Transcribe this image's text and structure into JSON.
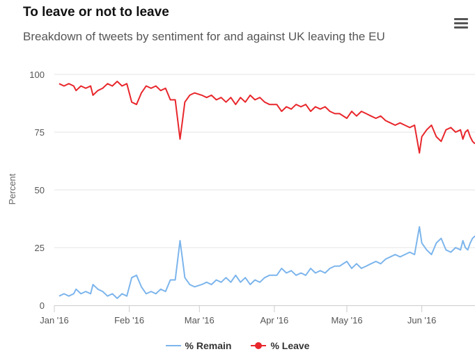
{
  "chart_data": {
    "type": "line",
    "title": "To leave or not to leave",
    "subtitle": "Breakdown of tweets by sentiment for and against UK leaving the EU",
    "ylabel": "Percent",
    "xlabel": "",
    "ylim": [
      0,
      100
    ],
    "yticks": [
      0,
      25,
      50,
      75,
      100
    ],
    "xlim": [
      "2016-01-01",
      "2016-06-23"
    ],
    "xticks": [
      {
        "date": "2016-01-01",
        "label": "Jan '16"
      },
      {
        "date": "2016-02-01",
        "label": "Feb '16"
      },
      {
        "date": "2016-03-01",
        "label": "Mar '16"
      },
      {
        "date": "2016-04-01",
        "label": "Apr '16"
      },
      {
        "date": "2016-05-01",
        "label": "May '16"
      },
      {
        "date": "2016-06-01",
        "label": "Jun '16"
      }
    ],
    "grid": true,
    "legend_position": "bottom",
    "series": [
      {
        "name": "% Remain",
        "color": "#7cb5ec",
        "marker": "line",
        "points": [
          [
            "2016-01-03",
            4
          ],
          [
            "2016-01-05",
            5
          ],
          [
            "2016-01-07",
            4
          ],
          [
            "2016-01-09",
            5
          ],
          [
            "2016-01-10",
            7
          ],
          [
            "2016-01-12",
            5
          ],
          [
            "2016-01-14",
            6
          ],
          [
            "2016-01-16",
            5
          ],
          [
            "2016-01-17",
            9
          ],
          [
            "2016-01-19",
            7
          ],
          [
            "2016-01-21",
            6
          ],
          [
            "2016-01-23",
            4
          ],
          [
            "2016-01-25",
            5
          ],
          [
            "2016-01-27",
            3
          ],
          [
            "2016-01-29",
            5
          ],
          [
            "2016-01-31",
            4
          ],
          [
            "2016-02-02",
            12
          ],
          [
            "2016-02-04",
            13
          ],
          [
            "2016-02-06",
            8
          ],
          [
            "2016-02-08",
            5
          ],
          [
            "2016-02-10",
            6
          ],
          [
            "2016-02-12",
            5
          ],
          [
            "2016-02-14",
            7
          ],
          [
            "2016-02-16",
            6
          ],
          [
            "2016-02-18",
            11
          ],
          [
            "2016-02-20",
            11
          ],
          [
            "2016-02-22",
            28
          ],
          [
            "2016-02-23",
            20
          ],
          [
            "2016-02-24",
            12
          ],
          [
            "2016-02-26",
            9
          ],
          [
            "2016-02-28",
            8
          ],
          [
            "2016-03-02",
            9
          ],
          [
            "2016-03-04",
            10
          ],
          [
            "2016-03-06",
            9
          ],
          [
            "2016-03-08",
            11
          ],
          [
            "2016-03-10",
            10
          ],
          [
            "2016-03-12",
            12
          ],
          [
            "2016-03-14",
            10
          ],
          [
            "2016-03-16",
            13
          ],
          [
            "2016-03-18",
            10
          ],
          [
            "2016-03-20",
            12
          ],
          [
            "2016-03-22",
            9
          ],
          [
            "2016-03-24",
            11
          ],
          [
            "2016-03-26",
            10
          ],
          [
            "2016-03-28",
            12
          ],
          [
            "2016-03-30",
            13
          ],
          [
            "2016-04-02",
            13
          ],
          [
            "2016-04-04",
            16
          ],
          [
            "2016-04-06",
            14
          ],
          [
            "2016-04-08",
            15
          ],
          [
            "2016-04-10",
            13
          ],
          [
            "2016-04-12",
            14
          ],
          [
            "2016-04-14",
            13
          ],
          [
            "2016-04-16",
            16
          ],
          [
            "2016-04-18",
            14
          ],
          [
            "2016-04-20",
            15
          ],
          [
            "2016-04-22",
            14
          ],
          [
            "2016-04-24",
            16
          ],
          [
            "2016-04-26",
            17
          ],
          [
            "2016-04-28",
            17
          ],
          [
            "2016-05-01",
            19
          ],
          [
            "2016-05-03",
            16
          ],
          [
            "2016-05-05",
            18
          ],
          [
            "2016-05-07",
            16
          ],
          [
            "2016-05-09",
            17
          ],
          [
            "2016-05-11",
            18
          ],
          [
            "2016-05-13",
            19
          ],
          [
            "2016-05-15",
            18
          ],
          [
            "2016-05-17",
            20
          ],
          [
            "2016-05-19",
            21
          ],
          [
            "2016-05-21",
            22
          ],
          [
            "2016-05-23",
            21
          ],
          [
            "2016-05-25",
            22
          ],
          [
            "2016-05-27",
            23
          ],
          [
            "2016-05-29",
            22
          ],
          [
            "2016-05-31",
            34
          ],
          [
            "2016-06-01",
            27
          ],
          [
            "2016-06-03",
            24
          ],
          [
            "2016-06-05",
            22
          ],
          [
            "2016-06-07",
            27
          ],
          [
            "2016-06-09",
            29
          ],
          [
            "2016-06-11",
            24
          ],
          [
            "2016-06-13",
            23
          ],
          [
            "2016-06-15",
            25
          ],
          [
            "2016-06-17",
            24
          ],
          [
            "2016-06-18",
            28
          ],
          [
            "2016-06-19",
            25
          ],
          [
            "2016-06-20",
            24
          ],
          [
            "2016-06-21",
            27
          ],
          [
            "2016-06-22",
            29
          ],
          [
            "2016-06-23",
            30
          ]
        ]
      },
      {
        "name": "% Leave",
        "color": "#e8262b",
        "marker": "dot",
        "points": [
          [
            "2016-01-03",
            96
          ],
          [
            "2016-01-05",
            95
          ],
          [
            "2016-01-07",
            96
          ],
          [
            "2016-01-09",
            95
          ],
          [
            "2016-01-10",
            93
          ],
          [
            "2016-01-12",
            95
          ],
          [
            "2016-01-14",
            94
          ],
          [
            "2016-01-16",
            95
          ],
          [
            "2016-01-17",
            91
          ],
          [
            "2016-01-19",
            93
          ],
          [
            "2016-01-21",
            94
          ],
          [
            "2016-01-23",
            96
          ],
          [
            "2016-01-25",
            95
          ],
          [
            "2016-01-27",
            97
          ],
          [
            "2016-01-29",
            95
          ],
          [
            "2016-01-31",
            96
          ],
          [
            "2016-02-02",
            88
          ],
          [
            "2016-02-04",
            87
          ],
          [
            "2016-02-06",
            92
          ],
          [
            "2016-02-08",
            95
          ],
          [
            "2016-02-10",
            94
          ],
          [
            "2016-02-12",
            95
          ],
          [
            "2016-02-14",
            93
          ],
          [
            "2016-02-16",
            94
          ],
          [
            "2016-02-18",
            89
          ],
          [
            "2016-02-20",
            89
          ],
          [
            "2016-02-22",
            72
          ],
          [
            "2016-02-23",
            80
          ],
          [
            "2016-02-24",
            88
          ],
          [
            "2016-02-26",
            91
          ],
          [
            "2016-02-28",
            92
          ],
          [
            "2016-03-02",
            91
          ],
          [
            "2016-03-04",
            90
          ],
          [
            "2016-03-06",
            91
          ],
          [
            "2016-03-08",
            89
          ],
          [
            "2016-03-10",
            90
          ],
          [
            "2016-03-12",
            88
          ],
          [
            "2016-03-14",
            90
          ],
          [
            "2016-03-16",
            87
          ],
          [
            "2016-03-18",
            90
          ],
          [
            "2016-03-20",
            88
          ],
          [
            "2016-03-22",
            91
          ],
          [
            "2016-03-24",
            89
          ],
          [
            "2016-03-26",
            90
          ],
          [
            "2016-03-28",
            88
          ],
          [
            "2016-03-30",
            87
          ],
          [
            "2016-04-02",
            87
          ],
          [
            "2016-04-04",
            84
          ],
          [
            "2016-04-06",
            86
          ],
          [
            "2016-04-08",
            85
          ],
          [
            "2016-04-10",
            87
          ],
          [
            "2016-04-12",
            86
          ],
          [
            "2016-04-14",
            87
          ],
          [
            "2016-04-16",
            84
          ],
          [
            "2016-04-18",
            86
          ],
          [
            "2016-04-20",
            85
          ],
          [
            "2016-04-22",
            86
          ],
          [
            "2016-04-24",
            84
          ],
          [
            "2016-04-26",
            83
          ],
          [
            "2016-04-28",
            83
          ],
          [
            "2016-05-01",
            81
          ],
          [
            "2016-05-03",
            84
          ],
          [
            "2016-05-05",
            82
          ],
          [
            "2016-05-07",
            84
          ],
          [
            "2016-05-09",
            83
          ],
          [
            "2016-05-11",
            82
          ],
          [
            "2016-05-13",
            81
          ],
          [
            "2016-05-15",
            82
          ],
          [
            "2016-05-17",
            80
          ],
          [
            "2016-05-19",
            79
          ],
          [
            "2016-05-21",
            78
          ],
          [
            "2016-05-23",
            79
          ],
          [
            "2016-05-25",
            78
          ],
          [
            "2016-05-27",
            77
          ],
          [
            "2016-05-29",
            78
          ],
          [
            "2016-05-31",
            66
          ],
          [
            "2016-06-01",
            73
          ],
          [
            "2016-06-03",
            76
          ],
          [
            "2016-06-05",
            78
          ],
          [
            "2016-06-07",
            73
          ],
          [
            "2016-06-09",
            71
          ],
          [
            "2016-06-11",
            76
          ],
          [
            "2016-06-13",
            77
          ],
          [
            "2016-06-15",
            75
          ],
          [
            "2016-06-17",
            76
          ],
          [
            "2016-06-18",
            72
          ],
          [
            "2016-06-19",
            75
          ],
          [
            "2016-06-20",
            76
          ],
          [
            "2016-06-21",
            73
          ],
          [
            "2016-06-22",
            71
          ],
          [
            "2016-06-23",
            70
          ]
        ]
      }
    ]
  }
}
